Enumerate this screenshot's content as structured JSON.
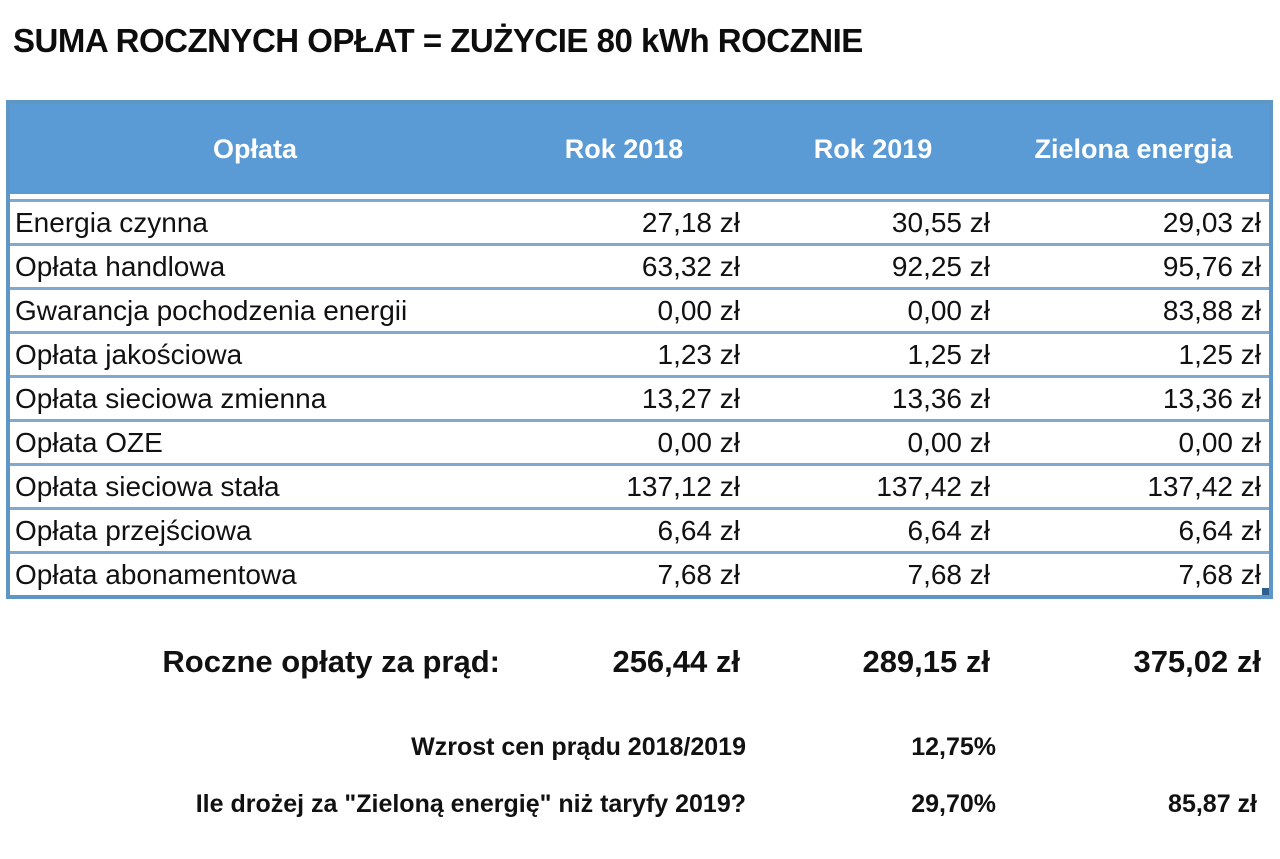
{
  "title": "SUMA ROCZNYCH OPŁAT = ZUŻYCIE 80 kWh ROCZNIE",
  "colors": {
    "header_bg": "#5B9BD5",
    "header_text": "#FFFFFF",
    "row_border": "#7FA9D0",
    "outer_border": "#5E96C5",
    "fill_handle": "#2E5F8F",
    "text": "#111111"
  },
  "table": {
    "columns": [
      "Opłata",
      "Rok 2018",
      "Rok 2019",
      "Zielona energia"
    ],
    "rows": [
      [
        "Energia czynna",
        "27,18 zł",
        "30,55 zł",
        "29,03 zł"
      ],
      [
        "Opłata handlowa",
        "63,32 zł",
        "92,25 zł",
        "95,76 zł"
      ],
      [
        "Gwarancja pochodzenia energii",
        "0,00 zł",
        "0,00 zł",
        "83,88 zł"
      ],
      [
        "Opłata jakościowa",
        "1,23 zł",
        "1,25 zł",
        "1,25 zł"
      ],
      [
        "Opłata sieciowa zmienna",
        "13,27 zł",
        "13,36 zł",
        "13,36 zł"
      ],
      [
        "Opłata OZE",
        "0,00 zł",
        "0,00 zł",
        "0,00 zł"
      ],
      [
        "Opłata sieciowa stała",
        "137,12 zł",
        "137,42 zł",
        "137,42 zł"
      ],
      [
        "Opłata przejściowa",
        "6,64 zł",
        "6,64 zł",
        "6,64 zł"
      ],
      [
        "Opłata abonamentowa",
        "7,68 zł",
        "7,68 zł",
        "7,68 zł"
      ]
    ]
  },
  "summary": {
    "totals": {
      "label": "Roczne opłaty za prąd:",
      "rok2018": "256,44 zł",
      "rok2019": "289,15 zł",
      "zielona": "375,02 zł"
    },
    "increase": {
      "label": "Wzrost cen prądu 2018/2019",
      "value": "12,75%"
    },
    "premium": {
      "label": "Ile drożej za \"Zieloną energię\" niż taryfy 2019?",
      "percent": "29,70%",
      "amount": "85,87 zł"
    }
  },
  "chart_data": {
    "type": "table",
    "title": "SUMA ROCZNYCH OPŁAT = ZUŻYCIE 80 kWh ROCZNIE",
    "columns": [
      "Opłata",
      "Rok 2018",
      "Rok 2019",
      "Zielona energia"
    ],
    "unit": "zł",
    "rows": [
      {
        "oplata": "Energia czynna",
        "rok_2018": 27.18,
        "rok_2019": 30.55,
        "zielona_energia": 29.03
      },
      {
        "oplata": "Opłata handlowa",
        "rok_2018": 63.32,
        "rok_2019": 92.25,
        "zielona_energia": 95.76
      },
      {
        "oplata": "Gwarancja pochodzenia energii",
        "rok_2018": 0.0,
        "rok_2019": 0.0,
        "zielona_energia": 83.88
      },
      {
        "oplata": "Opłata jakościowa",
        "rok_2018": 1.23,
        "rok_2019": 1.25,
        "zielona_energia": 1.25
      },
      {
        "oplata": "Opłata sieciowa zmienna",
        "rok_2018": 13.27,
        "rok_2019": 13.36,
        "zielona_energia": 13.36
      },
      {
        "oplata": "Opłata OZE",
        "rok_2018": 0.0,
        "rok_2019": 0.0,
        "zielona_energia": 0.0
      },
      {
        "oplata": "Opłata sieciowa stała",
        "rok_2018": 137.12,
        "rok_2019": 137.42,
        "zielona_energia": 137.42
      },
      {
        "oplata": "Opłata przejściowa",
        "rok_2018": 6.64,
        "rok_2019": 6.64,
        "zielona_energia": 6.64
      },
      {
        "oplata": "Opłata abonamentowa",
        "rok_2018": 7.68,
        "rok_2019": 7.68,
        "zielona_energia": 7.68
      }
    ],
    "totals": {
      "label": "Roczne opłaty za prąd:",
      "rok_2018": 256.44,
      "rok_2019": 289.15,
      "zielona_energia": 375.02
    },
    "derived": [
      {
        "label": "Wzrost cen prądu 2018/2019",
        "percent": 12.75
      },
      {
        "label": "Ile drożej za \"Zieloną energię\" niż taryfy 2019?",
        "percent": 29.7,
        "amount_zl": 85.87
      }
    ]
  }
}
